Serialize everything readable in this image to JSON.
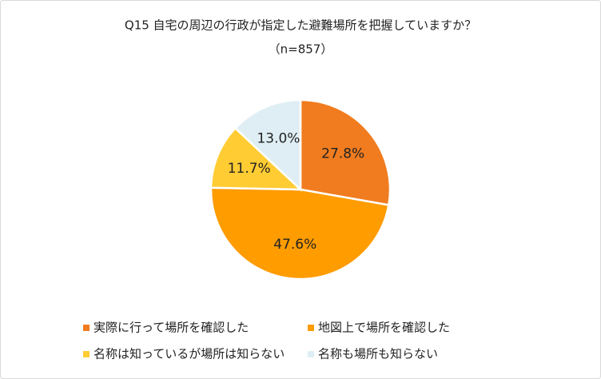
{
  "chart_data": {
    "type": "pie",
    "title": "Q15 自宅の周辺の行政が指定した避難場所を把握していますか？",
    "subtitle": "（n=857）",
    "categories": [
      "実際に行って場所を確認した",
      "地図上で場所を確認した",
      "名称は知っているが場所は知らない",
      "名称も場所も知らない"
    ],
    "values": [
      27.8,
      47.6,
      11.7,
      13.0
    ],
    "value_labels": [
      "27.8%",
      "47.6%",
      "11.7%",
      "13.0%"
    ],
    "colors": [
      "#F07C1F",
      "#FF9C00",
      "#FFCC33",
      "#DEEEF4"
    ]
  }
}
